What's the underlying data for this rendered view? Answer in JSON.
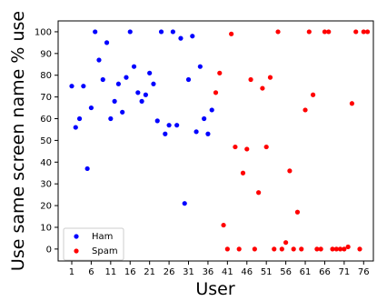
{
  "chart_data": {
    "type": "scatter",
    "xlabel": "User",
    "ylabel": "Use same screen name % use",
    "xlim": [
      -2.5,
      78.5
    ],
    "ylim": [
      -5.5,
      105
    ],
    "xticks": [
      1,
      6,
      11,
      16,
      21,
      26,
      31,
      36,
      41,
      46,
      51,
      56,
      61,
      66,
      71,
      76
    ],
    "yticks": [
      0,
      10,
      20,
      30,
      40,
      50,
      60,
      70,
      80,
      90,
      100
    ],
    "grid": false,
    "legend": "lower-left",
    "series": [
      {
        "name": "Ham",
        "color": "#0000ff",
        "x": [
          1,
          2,
          3,
          4,
          5,
          6,
          7,
          8,
          9,
          10,
          11,
          12,
          13,
          14,
          15,
          16,
          17,
          18,
          19,
          20,
          21,
          22,
          23,
          24,
          25,
          26,
          27,
          28,
          29,
          30,
          31,
          32,
          33,
          34,
          35,
          36,
          37
        ],
        "y": [
          75,
          56,
          60,
          75,
          37,
          65,
          100,
          87,
          78,
          95,
          60,
          68,
          76,
          63,
          79,
          100,
          84,
          72,
          68,
          71,
          81,
          76,
          59,
          100,
          53,
          57,
          100,
          57,
          97,
          21,
          78,
          98,
          54,
          84,
          60,
          53,
          64
        ]
      },
      {
        "name": "Spam",
        "color": "#ff0000",
        "x": [
          38,
          39,
          40,
          41,
          42,
          43,
          44,
          45,
          46,
          47,
          48,
          49,
          50,
          51,
          52,
          53,
          54,
          55,
          56,
          57,
          58,
          59,
          60,
          61,
          62,
          63,
          64,
          65,
          66,
          67,
          68,
          69,
          70,
          71,
          72,
          73,
          74,
          75,
          76,
          77
        ],
        "y": [
          72,
          81,
          11,
          0,
          99,
          47,
          0,
          35,
          46,
          78,
          0,
          26,
          74,
          47,
          79,
          0,
          100,
          0,
          3,
          36,
          0,
          17,
          0,
          64,
          100,
          71,
          0,
          0,
          100,
          100,
          0,
          0,
          0,
          0,
          1,
          67,
          100,
          0,
          100,
          100
        ]
      }
    ]
  }
}
